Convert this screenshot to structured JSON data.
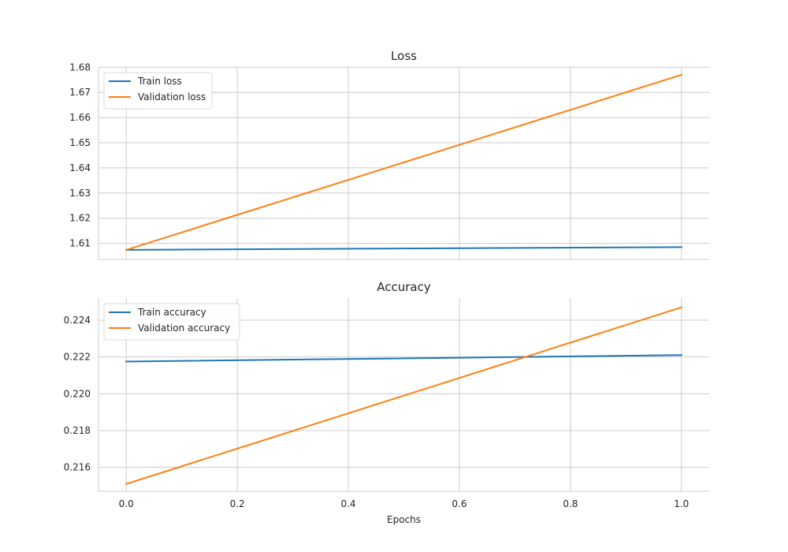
{
  "chart_data": [
    {
      "type": "line",
      "title": "Loss",
      "xlabel": "",
      "ylabel": "",
      "xlim": [
        -0.05,
        1.05
      ],
      "ylim": [
        1.6036,
        1.6801
      ],
      "yticks": [
        1.61,
        1.62,
        1.63,
        1.64,
        1.65,
        1.66,
        1.67,
        1.68
      ],
      "grid": true,
      "legend_position": "top-left",
      "series": [
        {
          "name": "Train loss",
          "color": "#1f77b4",
          "x": [
            0.0,
            1.0
          ],
          "y": [
            1.6074,
            1.6085
          ]
        },
        {
          "name": "Validation loss",
          "color": "#ff7f0e",
          "x": [
            0.0,
            1.0
          ],
          "y": [
            1.6074,
            1.677
          ]
        }
      ]
    },
    {
      "type": "line",
      "title": "Accuracy",
      "xlabel": "Epochs",
      "ylabel": "",
      "xlim": [
        -0.05,
        1.05
      ],
      "xticks": [
        0.0,
        0.2,
        0.4,
        0.6,
        0.8,
        1.0
      ],
      "ylim": [
        0.2147,
        0.2252
      ],
      "yticks": [
        0.216,
        0.218,
        0.22,
        0.222,
        0.224
      ],
      "grid": true,
      "legend_position": "top-left",
      "series": [
        {
          "name": "Train accuracy",
          "color": "#1f77b4",
          "x": [
            0.0,
            1.0
          ],
          "y": [
            0.22175,
            0.2221
          ]
        },
        {
          "name": "Validation accuracy",
          "color": "#ff7f0e",
          "x": [
            0.0,
            1.0
          ],
          "y": [
            0.2151,
            0.2247
          ]
        }
      ]
    }
  ]
}
